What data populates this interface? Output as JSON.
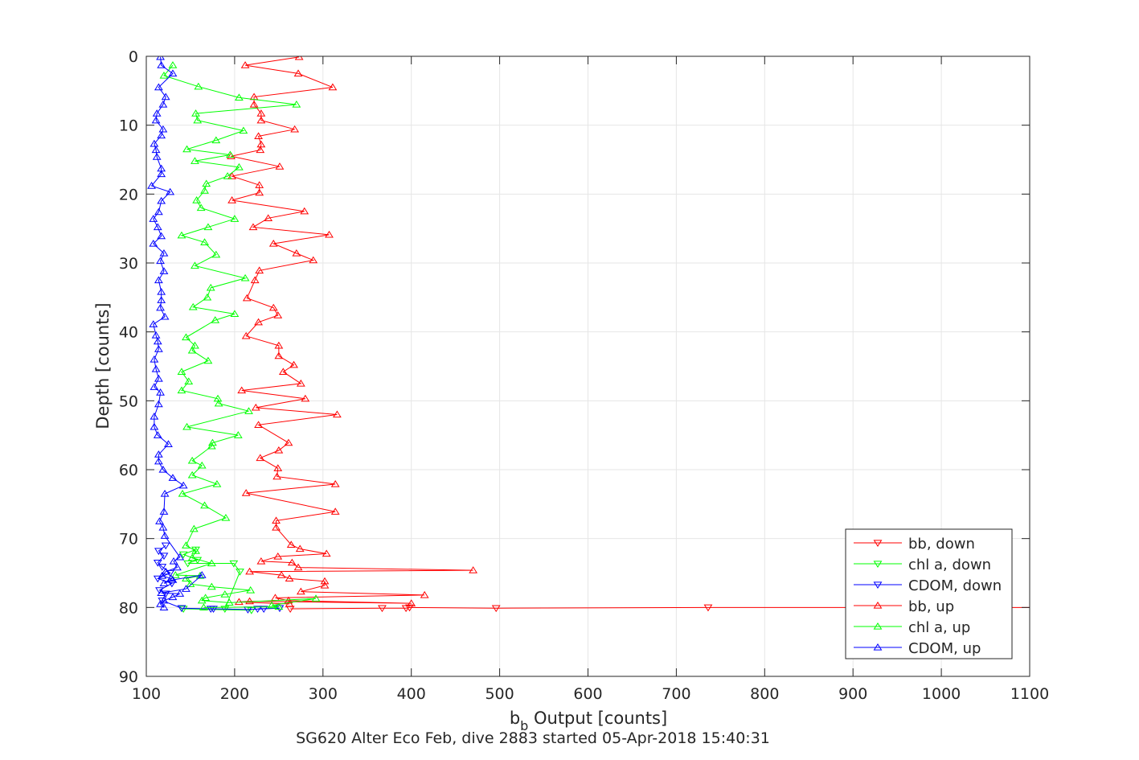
{
  "chart_data": {
    "type": "line",
    "title": "SG620 Alter Eco Feb, dive 2883 started 05-Apr-2018 15:40:31",
    "xlabel_main": "b",
    "xlabel_sub": "b",
    "xlabel_rest": " Output [counts]",
    "ylabel": "Depth [counts]",
    "xlim": [
      100,
      1100
    ],
    "ylim": [
      0,
      90
    ],
    "y_reversed": true,
    "grid": true,
    "legend_position": "bottom-right",
    "xticks": [
      "100",
      "200",
      "300",
      "400",
      "500",
      "600",
      "700",
      "800",
      "900",
      "1000",
      "1100"
    ],
    "yticks": [
      "0",
      "10",
      "20",
      "30",
      "40",
      "50",
      "60",
      "70",
      "80",
      "90"
    ],
    "colors": {
      "bb": "#ff0000",
      "chl": "#00ff00",
      "cdom": "#0000ff",
      "axis": "#262626",
      "grid": "#e6e6e6"
    },
    "series": [
      {
        "name": "bb, down",
        "color": "#ff0000",
        "marker": "triangle-down",
        "x": [
          263,
          367,
          394,
          398,
          496,
          736,
          1100
        ],
        "depth": [
          80.2,
          80.1,
          80.1,
          80.0,
          80.1,
          80.0,
          80.0
        ]
      },
      {
        "name": "chl a, down",
        "color": "#00ff00",
        "marker": "triangle-down",
        "x": [
          156,
          142,
          158,
          147,
          199,
          206,
          189,
          219,
          142
        ],
        "depth": [
          71.6,
          72.3,
          73.1,
          73.6,
          73.6,
          74.8,
          80.2,
          80.4,
          80.2
        ]
      },
      {
        "name": "CDOM, down",
        "color": "#0000ff",
        "marker": "triangle-down",
        "x": [
          122,
          114,
          120,
          113,
          118,
          127,
          113,
          129,
          115,
          122,
          118,
          140,
          173,
          176,
          215,
          233,
          251,
          226
        ],
        "depth": [
          71.0,
          71.8,
          72.5,
          73.5,
          74.1,
          75.0,
          75.8,
          76.5,
          77.5,
          78.0,
          79.0,
          80.1,
          80.2,
          80.2,
          80.3,
          80.2,
          80.1,
          80.2
        ]
      },
      {
        "name": "bb, up",
        "color": "#ff0000",
        "marker": "triangle-up",
        "x": [
          273,
          212,
          272,
          311,
          222,
          222,
          230,
          230,
          268,
          227,
          230,
          229,
          196,
          251,
          197,
          228,
          228,
          197,
          279,
          238,
          221,
          307,
          244,
          270,
          289,
          228,
          223,
          214,
          244,
          249,
          227,
          213,
          250,
          250,
          267,
          255,
          275,
          208,
          280,
          224,
          316,
          227,
          261,
          250,
          229,
          249,
          248,
          314,
          213,
          314,
          247,
          247,
          264,
          274,
          304,
          249,
          230,
          265,
          272,
          470,
          217,
          253,
          262,
          302,
          302,
          275,
          415,
          246,
          261,
          400,
          217,
          205,
          262
        ],
        "depth": [
          0.1,
          1.3,
          2.5,
          4.5,
          5.9,
          7.0,
          8.3,
          9.3,
          10.6,
          11.6,
          12.8,
          13.6,
          14.5,
          16.0,
          17.4,
          18.7,
          19.8,
          20.9,
          22.5,
          23.5,
          24.8,
          25.9,
          27.2,
          28.6,
          29.6,
          31.1,
          32.5,
          35.1,
          36.5,
          37.6,
          38.6,
          40.6,
          42.0,
          43.5,
          44.8,
          45.8,
          47.5,
          48.5,
          49.7,
          51.0,
          52.0,
          53.5,
          56.1,
          57.2,
          58.3,
          59.8,
          61.0,
          62.1,
          63.4,
          66.1,
          67.4,
          68.4,
          70.9,
          71.5,
          72.2,
          72.6,
          73.3,
          73.5,
          74.2,
          74.6,
          74.8,
          75.3,
          75.8,
          76.2,
          76.8,
          77.7,
          78.2,
          78.6,
          79.0,
          79.4,
          79.1,
          79.2,
          79.5
        ]
      },
      {
        "name": "chl a, up",
        "color": "#00ff00",
        "marker": "triangle-up",
        "x": [
          130,
          120,
          159,
          205,
          270,
          156,
          158,
          210,
          179,
          146,
          195,
          155,
          205,
          192,
          168,
          166,
          157,
          162,
          200,
          170,
          140,
          166,
          179,
          155,
          212,
          173,
          169,
          153,
          200,
          178,
          145,
          155,
          152,
          170,
          140,
          148,
          140,
          181,
          182,
          216,
          146,
          204,
          175,
          174,
          152,
          163,
          152,
          180,
          141,
          166,
          190,
          154,
          145,
          156,
          152,
          174,
          133,
          161,
          145,
          150,
          174,
          218,
          189,
          167,
          163,
          194,
          292,
          242,
          250,
          165
        ],
        "depth": [
          1.3,
          2.8,
          4.4,
          6.0,
          7.0,
          8.3,
          9.3,
          10.8,
          12.2,
          13.5,
          14.3,
          15.2,
          16.1,
          17.4,
          18.5,
          19.5,
          20.9,
          22.0,
          23.6,
          24.8,
          26.0,
          27.0,
          28.8,
          30.4,
          32.2,
          33.6,
          35.0,
          36.4,
          37.4,
          38.3,
          40.8,
          42.0,
          42.7,
          44.2,
          45.8,
          47.2,
          48.5,
          49.7,
          50.4,
          51.5,
          53.8,
          55.0,
          56.1,
          56.6,
          58.7,
          59.4,
          60.8,
          62.1,
          63.5,
          65.2,
          67.0,
          68.6,
          71.0,
          71.8,
          72.8,
          73.6,
          75.3,
          75.4,
          75.8,
          76.6,
          77.0,
          77.5,
          78.1,
          78.6,
          79.0,
          79.3,
          78.7,
          79.7,
          79.9,
          80.0
        ]
      },
      {
        "name": "CDOM, up",
        "color": "#0000ff",
        "marker": "triangle-up",
        "x": [
          116,
          117,
          130,
          114,
          122,
          119,
          112,
          111,
          119,
          117,
          109,
          111,
          112,
          117,
          117,
          106,
          127,
          117,
          114,
          108,
          113,
          117,
          108,
          120,
          116,
          120,
          114,
          117,
          117,
          116,
          121,
          108,
          111,
          113,
          114,
          109,
          111,
          114,
          109,
          116,
          114,
          109,
          109,
          113,
          125,
          114,
          114,
          119,
          130,
          142,
          121,
          120,
          115,
          119,
          121,
          138,
          131,
          135,
          122,
          118,
          128,
          120,
          130,
          163,
          145,
          117,
          138,
          130,
          120,
          116,
          120
        ],
        "depth": [
          0.1,
          1.3,
          2.5,
          4.5,
          5.9,
          7.0,
          8.3,
          9.3,
          10.6,
          11.5,
          12.7,
          13.6,
          14.6,
          16.3,
          17.1,
          18.8,
          19.7,
          21.0,
          22.6,
          23.6,
          24.8,
          26.1,
          27.2,
          28.6,
          29.7,
          31.2,
          32.5,
          34.2,
          35.4,
          36.5,
          37.8,
          38.9,
          40.5,
          41.4,
          42.5,
          44.0,
          45.4,
          46.8,
          48.0,
          48.8,
          50.5,
          52.3,
          53.8,
          55.0,
          56.3,
          57.8,
          58.8,
          60.0,
          61.2,
          62.3,
          63.5,
          66.1,
          67.5,
          68.4,
          69.6,
          72.7,
          73.3,
          74.2,
          74.8,
          75.4,
          75.8,
          76.5,
          76.0,
          75.3,
          77.3,
          77.9,
          78.0,
          78.5,
          79.0,
          79.5,
          80.0
        ]
      }
    ]
  }
}
